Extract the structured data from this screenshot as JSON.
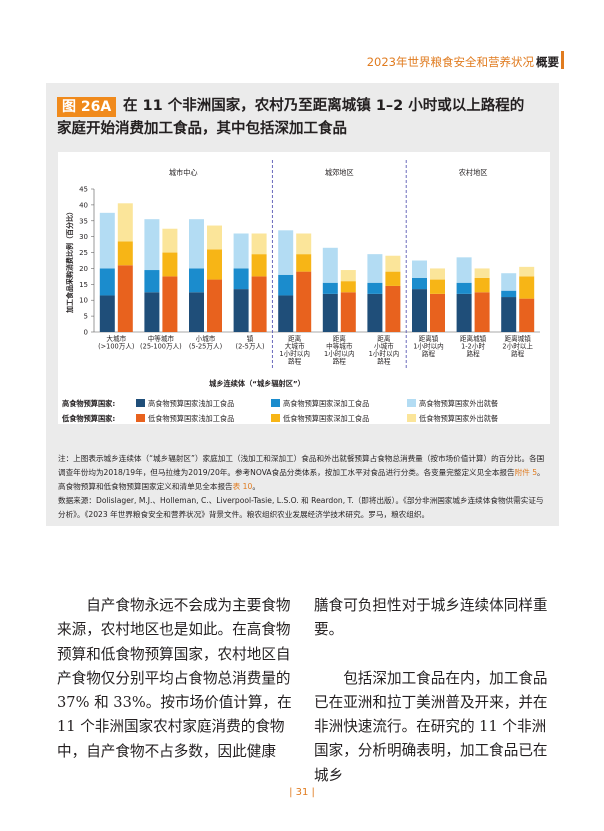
{
  "header": {
    "title": "2023年世界粮食安全和营养状况",
    "tag": "概要"
  },
  "figure": {
    "label": "图 26A",
    "title": "在 11 个非洲国家，农村乃至距离城镇 1–2 小时或以上路程的家庭开始消费加工食品，其中包括深加工食品"
  },
  "chart_data": {
    "type": "bar",
    "subtype": "stacked-grouped",
    "ylabel": "加工食品采购消费比例（百分比）",
    "xlabel": "城乡连续体（“城乡辐射区”）",
    "ylim": [
      0,
      45
    ],
    "yticks": [
      0,
      5,
      10,
      15,
      20,
      25,
      30,
      35,
      40,
      45
    ],
    "sections": [
      "城市中心",
      "城郊地区",
      "农村地区"
    ],
    "categories": [
      {
        "label": [
          "大城市",
          "(>100万人)"
        ],
        "section": 0
      },
      {
        "label": [
          "中等城市",
          "(25-100万人)"
        ],
        "section": 0
      },
      {
        "label": [
          "小城市",
          "(5-25万人)"
        ],
        "section": 0
      },
      {
        "label": [
          "镇",
          "(2-5万人)"
        ],
        "section": 0
      },
      {
        "label": [
          "距离",
          "大城市",
          "1小时以内",
          "路程"
        ],
        "section": 1
      },
      {
        "label": [
          "距离",
          "中等城市",
          "1小时以内",
          "路程"
        ],
        "section": 1
      },
      {
        "label": [
          "距离",
          "小城市",
          "1小时以内",
          "路程"
        ],
        "section": 1
      },
      {
        "label": [
          "距离镇",
          "1小时以内",
          "路程"
        ],
        "section": 2
      },
      {
        "label": [
          "距离城镇",
          "1-2小时",
          "路程"
        ],
        "section": 2
      },
      {
        "label": [
          "距离城镇",
          "2小时以上",
          "路程"
        ],
        "section": 2
      }
    ],
    "groups": [
      {
        "name": "高食物预算国家",
        "series": [
          {
            "name": "高食物预算国家浅加工食品",
            "color": "#1f4e79",
            "values": [
              11.5,
              12.5,
              12.5,
              13.5,
              11.5,
              12.0,
              12.0,
              13.5,
              12.0,
              11.0
            ]
          },
          {
            "name": "高食物预算国家深加工食品",
            "color": "#1b8ccd",
            "values": [
              8.5,
              7.0,
              7.5,
              6.5,
              6.5,
              3.5,
              3.5,
              3.5,
              3.5,
              2.0
            ]
          },
          {
            "name": "高食物预算国家外出就餐",
            "color": "#b3dcf3",
            "values": [
              17.5,
              16.0,
              15.5,
              11.0,
              14.0,
              11.0,
              9.0,
              5.5,
              8.0,
              5.5
            ]
          }
        ]
      },
      {
        "name": "低食物预算国家",
        "series": [
          {
            "name": "低食物预算国家浅加工食品",
            "color": "#e8621e",
            "values": [
              21.0,
              17.5,
              16.5,
              17.5,
              19.0,
              12.5,
              14.5,
              12.0,
              12.5,
              10.5
            ]
          },
          {
            "name": "低食物预算国家深加工食品",
            "color": "#f7b516",
            "values": [
              7.5,
              7.5,
              9.5,
              7.0,
              5.5,
              3.5,
              4.5,
              4.5,
              4.5,
              7.0
            ]
          },
          {
            "name": "低食物预算国家外出就餐",
            "color": "#fbe59a",
            "values": [
              12.0,
              7.5,
              7.5,
              6.5,
              6.5,
              3.5,
              5.0,
              3.5,
              3.0,
              3.0
            ]
          }
        ]
      }
    ]
  },
  "legend": {
    "high_head": "高食物预算国家:",
    "low_head": "低食物预算国家:",
    "high_items": [
      "高食物预算国家浅加工食品",
      "高食物预算国家深加工食品",
      "高食物预算国家外出就餐"
    ],
    "low_items": [
      "低食物预算国家浅加工食品",
      "低食物预算国家深加工食品",
      "低食物预算国家外出就餐"
    ]
  },
  "note": {
    "p1_a": "注：上图表示城乡连续体（“城乡辐射区”）家庭加工（浅加工和深加工）食品和外出就餐预算占食物总消费量（按市场价值计算）的百分比。各国调查年份均为2018/19年，但马拉维为2019/20年。参考NOVA食品分类体系，按加工水平对食品进行分类。各变量完整定义见全本报告",
    "p1_ref1": "附件 5",
    "p1_b": "。高食物预算和低食物预算国家定义和清单见全本报告",
    "p1_ref2": "表 10",
    "p1_c": "。",
    "p2": "数据来源：Dolislager, M.J.、Holleman, C.、Liverpool-Tasie, L.S.O. 和 Reardon, T.（即将出版）。《部分非洲国家城乡连续体食物供需实证与分析》。《2023 年世界粮食安全和营养状况》背景文件。粮农组织农业发展经济学技术研究。罗马，粮农组织。"
  },
  "body": {
    "left": "自产食物永远不会成为主要食物来源，农村地区也是如此。在高食物预算和低食物预算国家，农村地区自产食物仅分别平均占食物总消费量的 37% 和 33%。按市场价值计算，在 11 个非洲国家农村家庭消费的食物中，自产食物不占多数，因此健康",
    "right_1": "膳食可负担性对于城乡连续体同样重要。",
    "right_2": "包括深加工食品在内，加工食品已在亚洲和拉丁美洲普及开来，并在非洲快速流行。在研究的 11 个非洲国家，分析明确表明，加工食品已在城乡"
  },
  "page_number": "| 31 |"
}
